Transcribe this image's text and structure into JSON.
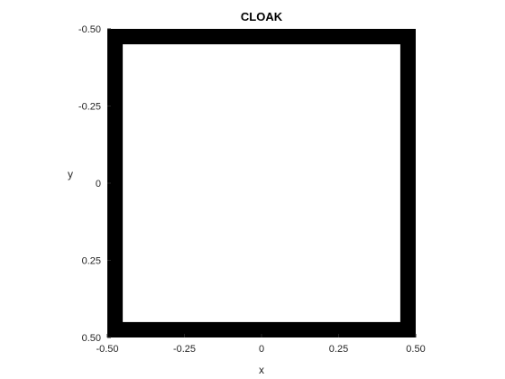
{
  "chart_data": {
    "type": "heatmap",
    "title": "CLOAK",
    "xlabel": "x",
    "ylabel": "y",
    "xlim": [
      -0.5,
      0.5
    ],
    "ylim": [
      -0.5,
      0.5
    ],
    "y_direction": "reversed",
    "grid": false,
    "x_ticks": [
      {
        "value": -0.5,
        "label": "-0.50"
      },
      {
        "value": -0.25,
        "label": "-0.25"
      },
      {
        "value": 0,
        "label": "0"
      },
      {
        "value": 0.25,
        "label": "0.25"
      },
      {
        "value": 0.5,
        "label": "0.50"
      }
    ],
    "y_ticks": [
      {
        "value": -0.5,
        "label": "-0.50"
      },
      {
        "value": -0.25,
        "label": "-0.25"
      },
      {
        "value": 0,
        "label": "0"
      },
      {
        "value": 0.25,
        "label": "0.25"
      },
      {
        "value": 0.5,
        "label": "0.50"
      }
    ],
    "regions": [
      {
        "name": "cloak-shell",
        "x": [
          -0.5,
          0.5
        ],
        "y": [
          -0.5,
          0.5
        ],
        "color": "#000000"
      },
      {
        "name": "interior",
        "x": [
          -0.45,
          0.45
        ],
        "y": [
          -0.45,
          0.45
        ],
        "color": "#ffffff"
      }
    ]
  }
}
